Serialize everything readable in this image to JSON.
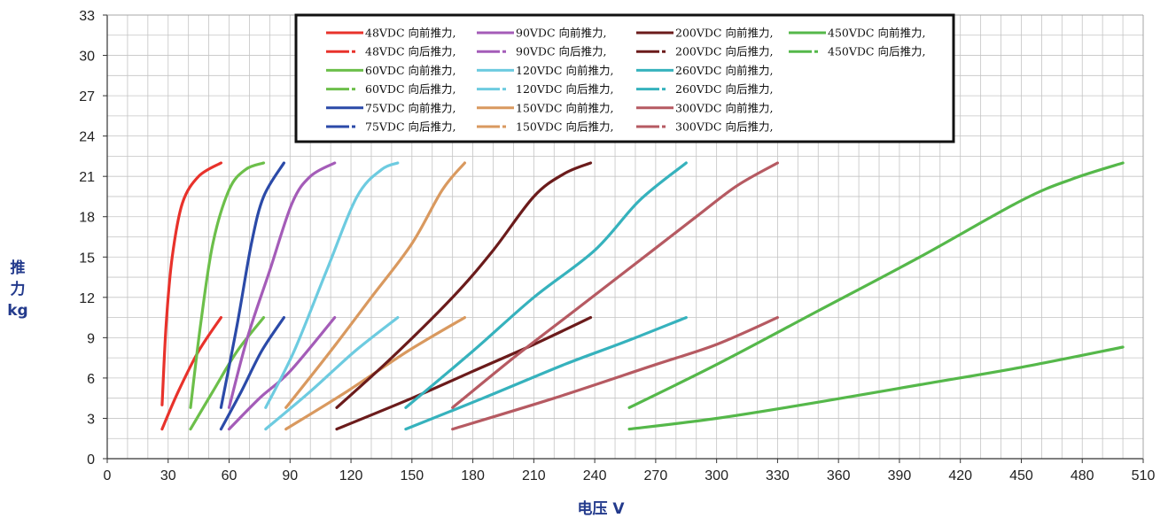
{
  "chart_data": {
    "type": "line",
    "xlabel": "电压 V",
    "ylabel_lines": [
      "推",
      "力",
      "kg"
    ],
    "xlim": [
      0,
      510
    ],
    "ylim": [
      0,
      33
    ],
    "x_ticks": [
      0,
      30,
      60,
      90,
      120,
      150,
      180,
      210,
      240,
      270,
      300,
      330,
      360,
      390,
      420,
      450,
      480,
      510
    ],
    "y_ticks": [
      0,
      3,
      6,
      9,
      12,
      15,
      18,
      21,
      24,
      27,
      30,
      33
    ],
    "grid": true,
    "legend_position": "top",
    "series": [
      {
        "name": "48VDC 向前推力,",
        "color": "#e8322b",
        "style": "solid",
        "points": [
          [
            27,
            4
          ],
          [
            29,
            10
          ],
          [
            32,
            15
          ],
          [
            37,
            19
          ],
          [
            45,
            21
          ],
          [
            56,
            22
          ]
        ]
      },
      {
        "name": "48VDC 向后推力,",
        "color": "#e8322b",
        "style": "dashed",
        "points": [
          [
            27,
            2.2
          ],
          [
            35,
            5
          ],
          [
            45,
            8
          ],
          [
            56,
            10.5
          ]
        ]
      },
      {
        "name": "60VDC 向前推力,",
        "color": "#6cbf4a",
        "style": "solid",
        "points": [
          [
            41,
            3.8
          ],
          [
            46,
            10
          ],
          [
            52,
            16
          ],
          [
            60,
            20
          ],
          [
            68,
            21.5
          ],
          [
            77,
            22
          ]
        ]
      },
      {
        "name": "60VDC 向后推力,",
        "color": "#6cbf4a",
        "style": "dashed",
        "points": [
          [
            41,
            2.2
          ],
          [
            52,
            5
          ],
          [
            64,
            8
          ],
          [
            77,
            10.5
          ]
        ]
      },
      {
        "name": "75VDC 向前推力,",
        "color": "#2b4aa8",
        "style": "solid",
        "points": [
          [
            56,
            3.8
          ],
          [
            64,
            10
          ],
          [
            71,
            16
          ],
          [
            77,
            19.5
          ],
          [
            87,
            22
          ]
        ]
      },
      {
        "name": "75VDC 向后推力,",
        "color": "#2b4aa8",
        "style": "dashed",
        "points": [
          [
            56,
            2.2
          ],
          [
            66,
            5
          ],
          [
            76,
            8
          ],
          [
            87,
            10.5
          ]
        ]
      },
      {
        "name": "90VDC 向前推力,",
        "color": "#a45cb8",
        "style": "solid",
        "points": [
          [
            60,
            3.8
          ],
          [
            69,
            9
          ],
          [
            80,
            14
          ],
          [
            91,
            19
          ],
          [
            100,
            21
          ],
          [
            112,
            22
          ]
        ]
      },
      {
        "name": "90VDC 向后推力,",
        "color": "#a45cb8",
        "style": "dashed",
        "points": [
          [
            60,
            2.2
          ],
          [
            75,
            4.5
          ],
          [
            90,
            6.5
          ],
          [
            112,
            10.5
          ]
        ]
      },
      {
        "name": "120VDC 向前推力,",
        "color": "#6dcbe0",
        "style": "solid",
        "points": [
          [
            78,
            3.8
          ],
          [
            92,
            8
          ],
          [
            108,
            14
          ],
          [
            123,
            19.5
          ],
          [
            135,
            21.5
          ],
          [
            143,
            22
          ]
        ]
      },
      {
        "name": "120VDC 向后推力,",
        "color": "#6dcbe0",
        "style": "dashed",
        "points": [
          [
            78,
            2.2
          ],
          [
            100,
            5
          ],
          [
            122,
            8
          ],
          [
            143,
            10.5
          ]
        ]
      },
      {
        "name": "150VDC 向前推力,",
        "color": "#d9995f",
        "style": "solid",
        "points": [
          [
            88,
            3.8
          ],
          [
            110,
            8
          ],
          [
            130,
            12
          ],
          [
            150,
            16
          ],
          [
            165,
            20
          ],
          [
            176,
            22
          ]
        ]
      },
      {
        "name": "150VDC 向后推力,",
        "color": "#d9995f",
        "style": "dashed",
        "points": [
          [
            88,
            2.2
          ],
          [
            118,
            5
          ],
          [
            148,
            8
          ],
          [
            176,
            10.5
          ]
        ]
      },
      {
        "name": "200VDC 向前推力,",
        "color": "#6b1b1b",
        "style": "solid",
        "points": [
          [
            113,
            3.8
          ],
          [
            140,
            7.5
          ],
          [
            170,
            12
          ],
          [
            190,
            15.5
          ],
          [
            210,
            19.5
          ],
          [
            225,
            21.2
          ],
          [
            238,
            22
          ]
        ]
      },
      {
        "name": "200VDC 向后推力,",
        "color": "#6b1b1b",
        "style": "dashed",
        "points": [
          [
            113,
            2.2
          ],
          [
            150,
            4.5
          ],
          [
            180,
            6.5
          ],
          [
            210,
            8.5
          ],
          [
            238,
            10.5
          ]
        ]
      },
      {
        "name": "260VDC 向前推力,",
        "color": "#36b2bd",
        "style": "solid",
        "points": [
          [
            147,
            3.8
          ],
          [
            180,
            8
          ],
          [
            210,
            12
          ],
          [
            240,
            15.5
          ],
          [
            262,
            19.2
          ],
          [
            285,
            22
          ]
        ]
      },
      {
        "name": "260VDC 向后推力,",
        "color": "#36b2bd",
        "style": "dashed",
        "points": [
          [
            147,
            2.2
          ],
          [
            185,
            4.5
          ],
          [
            225,
            7
          ],
          [
            255,
            8.7
          ],
          [
            285,
            10.5
          ]
        ]
      },
      {
        "name": "300VDC 向前推力,",
        "color": "#b65a62",
        "style": "solid",
        "points": [
          [
            170,
            3.8
          ],
          [
            200,
            7.5
          ],
          [
            230,
            11
          ],
          [
            260,
            14.5
          ],
          [
            290,
            18
          ],
          [
            310,
            20.3
          ],
          [
            330,
            22
          ]
        ]
      },
      {
        "name": "300VDC 向后推力,",
        "color": "#b65a62",
        "style": "dashed",
        "points": [
          [
            170,
            2.2
          ],
          [
            220,
            4.5
          ],
          [
            270,
            7
          ],
          [
            300,
            8.5
          ],
          [
            330,
            10.5
          ]
        ]
      },
      {
        "name": "450VDC 向前推力,",
        "color": "#55b84a",
        "style": "solid",
        "points": [
          [
            257,
            3.8
          ],
          [
            300,
            7
          ],
          [
            350,
            11
          ],
          [
            400,
            15
          ],
          [
            450,
            19.2
          ],
          [
            475,
            20.8
          ],
          [
            500,
            22
          ]
        ]
      },
      {
        "name": "450VDC 向后推力,",
        "color": "#55b84a",
        "style": "dashed",
        "points": [
          [
            257,
            2.2
          ],
          [
            300,
            3
          ],
          [
            350,
            4.2
          ],
          [
            400,
            5.5
          ],
          [
            450,
            6.8
          ],
          [
            500,
            8.3
          ]
        ]
      }
    ]
  }
}
